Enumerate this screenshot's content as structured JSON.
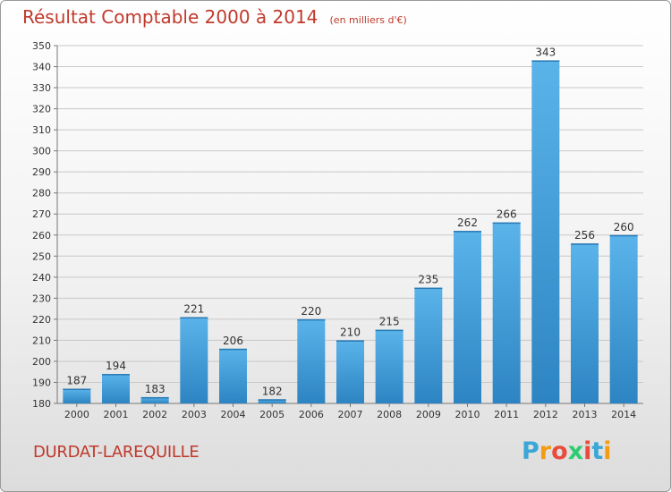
{
  "header": {
    "title": "Résultat Comptable 2000 à 2014",
    "subtitle": "(en milliers d'€)"
  },
  "footer": {
    "commune": "DURDAT-LAREQUILLE",
    "logo_letters": [
      "P",
      "r",
      "o",
      "x",
      "i",
      "t",
      "i"
    ],
    "logo_colors": [
      "#3aa7d6",
      "#f39c12",
      "#e74c3c",
      "#2ecc71",
      "#e74c3c",
      "#3aa7d6",
      "#f39c12"
    ]
  },
  "colors": {
    "bar_light": "#5ab4ea",
    "bar_dark": "#2d84c2",
    "title": "#c0392b",
    "grid": "#c8c8c8"
  },
  "chart_data": {
    "type": "bar",
    "title": "Résultat Comptable 2000 à 2014",
    "subtitle": "(en milliers d'€)",
    "categories": [
      "2000",
      "2001",
      "2002",
      "2003",
      "2004",
      "2005",
      "2006",
      "2007",
      "2008",
      "2009",
      "2010",
      "2011",
      "2012",
      "2013",
      "2014"
    ],
    "values": [
      187,
      194,
      183,
      221,
      206,
      182,
      220,
      210,
      215,
      235,
      262,
      266,
      343,
      256,
      260
    ],
    "ylim": [
      180,
      350
    ],
    "yticks": [
      180,
      190,
      200,
      210,
      220,
      230,
      240,
      250,
      260,
      270,
      280,
      290,
      300,
      310,
      320,
      330,
      340,
      350
    ],
    "grid": "horizontal",
    "data_labels": true
  }
}
